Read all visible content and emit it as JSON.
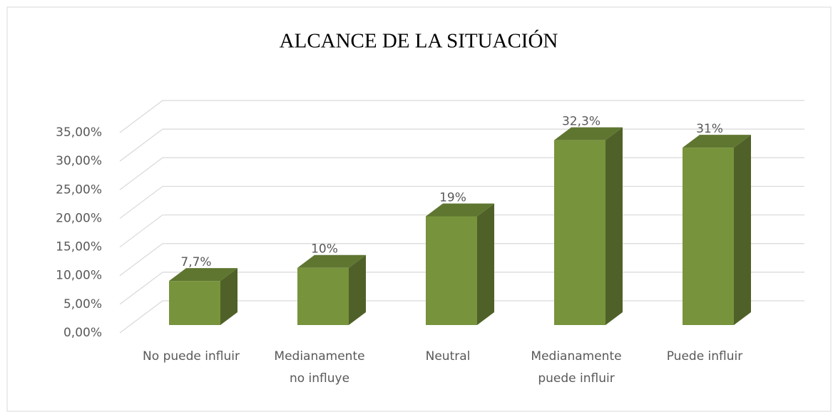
{
  "chart_data": {
    "type": "bar3d",
    "title": "ALCANCE DE LA SITUACIÓN",
    "categories": [
      "No puede influir",
      "Medianamente no influye",
      "Neutral",
      "Medianamente puede influir",
      "Puede influir"
    ],
    "values": [
      7.7,
      10,
      19,
      32.3,
      31
    ],
    "value_labels": [
      "7,7%",
      "10%",
      "19%",
      "32,3%",
      "31%"
    ],
    "color": "#77933c",
    "ylim": [
      0,
      35
    ],
    "yticks": [
      {
        "value": 0,
        "label": "0,00%"
      },
      {
        "value": 5,
        "label": "5,00%"
      },
      {
        "value": 10,
        "label": "10,00%"
      },
      {
        "value": 15,
        "label": "15,00%"
      },
      {
        "value": 20,
        "label": "20,00%"
      },
      {
        "value": 25,
        "label": "25,00%"
      },
      {
        "value": 30,
        "label": "30,00%"
      },
      {
        "value": 35,
        "label": "35,00%"
      }
    ],
    "grid": true
  }
}
